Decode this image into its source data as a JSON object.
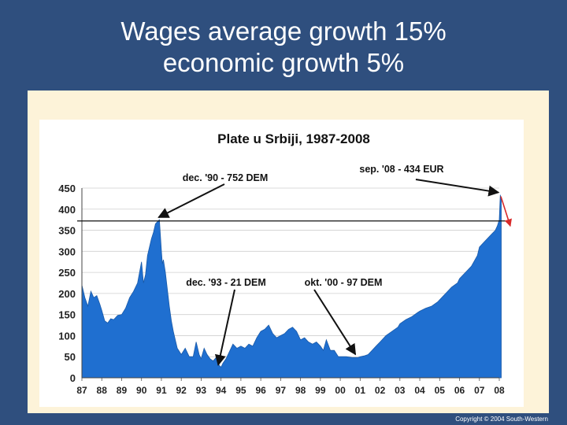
{
  "slide": {
    "title_line1": "Wages average growth 15%",
    "title_line2": "economic growth 5%",
    "copyright": "Copyright © 2004 South-Western"
  },
  "colors": {
    "background": "#2f4f7e",
    "area_fill": "#1f6fd0",
    "panel": "#fdf3d9",
    "arrow_red": "#d82a2a"
  },
  "chart_data": {
    "type": "area",
    "title": "Plate u Srbiji, 1987-2008",
    "xlabel": "",
    "ylabel": "",
    "ylim": [
      0,
      450
    ],
    "yticks": [
      0,
      50,
      100,
      150,
      200,
      250,
      300,
      350,
      400,
      450
    ],
    "xticks": [
      "87",
      "88",
      "89",
      "90",
      "91",
      "92",
      "93",
      "94",
      "95",
      "96",
      "97",
      "98",
      "99",
      "00",
      "01",
      "02",
      "03",
      "04",
      "05",
      "06",
      "07",
      "08"
    ],
    "grid": true,
    "reference_line": 372,
    "series": [
      {
        "x": [
          1987.0,
          1987.15,
          1987.3,
          1987.45,
          1987.6,
          1987.75,
          1987.9,
          1988.0,
          1988.15,
          1988.3,
          1988.45,
          1988.6,
          1988.8,
          1989.0,
          1989.2,
          1989.4,
          1989.6,
          1989.8,
          1990.0,
          1990.1,
          1990.2,
          1990.3,
          1990.4,
          1990.5,
          1990.6,
          1990.7,
          1990.8,
          1990.9,
          1991.0,
          1991.05,
          1991.1,
          1991.2,
          1991.3,
          1991.4,
          1991.5,
          1991.6,
          1991.7,
          1991.8,
          1992.0,
          1992.2,
          1992.4,
          1992.6,
          1992.75,
          1992.9,
          1993.0,
          1993.15,
          1993.3,
          1993.45,
          1993.6,
          1993.75,
          1993.9,
          1994.0,
          1994.1,
          1994.25,
          1994.4,
          1994.6,
          1994.8,
          1995.0,
          1995.2,
          1995.4,
          1995.6,
          1995.8,
          1996.0,
          1996.2,
          1996.4,
          1996.6,
          1996.8,
          1997.0,
          1997.2,
          1997.4,
          1997.6,
          1997.8,
          1998.0,
          1998.2,
          1998.4,
          1998.6,
          1998.8,
          1999.0,
          1999.15,
          1999.3,
          1999.5,
          1999.7,
          1999.9,
          2000.0,
          2000.3,
          2000.6,
          2000.9,
          2001.0,
          2001.2,
          2001.4,
          2001.6,
          2001.8,
          2002.0,
          2002.3,
          2002.6,
          2002.9,
          2003.0,
          2003.3,
          2003.6,
          2003.9,
          2004.0,
          2004.3,
          2004.6,
          2004.9,
          2005.0,
          2005.3,
          2005.6,
          2005.9,
          2006.0,
          2006.3,
          2006.6,
          2006.9,
          2007.0,
          2007.3,
          2007.6,
          2007.8,
          2007.9,
          2008.0,
          2008.05,
          2008.1
        ],
        "values": [
          220,
          190,
          170,
          205,
          190,
          195,
          175,
          160,
          135,
          130,
          140,
          138,
          148,
          150,
          165,
          190,
          205,
          225,
          275,
          225,
          245,
          290,
          310,
          330,
          345,
          365,
          370,
          375,
          300,
          270,
          280,
          250,
          210,
          170,
          135,
          110,
          90,
          70,
          55,
          70,
          50,
          50,
          85,
          55,
          45,
          70,
          55,
          45,
          40,
          48,
          30,
          25,
          35,
          45,
          60,
          80,
          70,
          75,
          70,
          80,
          75,
          95,
          110,
          115,
          125,
          105,
          95,
          100,
          105,
          115,
          120,
          110,
          90,
          95,
          85,
          80,
          85,
          75,
          65,
          90,
          65,
          65,
          50,
          50,
          50,
          48,
          48,
          50,
          52,
          55,
          65,
          75,
          85,
          100,
          110,
          120,
          128,
          138,
          145,
          155,
          158,
          165,
          170,
          180,
          185,
          200,
          215,
          225,
          235,
          250,
          265,
          290,
          310,
          325,
          340,
          350,
          360,
          375,
          434,
          420
        ]
      }
    ],
    "annotations": [
      {
        "text": "dec. '90 - 752 DEM",
        "x": 1990.9,
        "y": 375
      },
      {
        "text": "sep. '08 - 434 EUR",
        "x": 2008.0,
        "y": 434
      },
      {
        "text": "dec. '93 - 21 DEM",
        "x": 1993.9,
        "y": 25
      },
      {
        "text": "okt. '00 - 97 DEM",
        "x": 2000.8,
        "y": 50
      }
    ]
  }
}
